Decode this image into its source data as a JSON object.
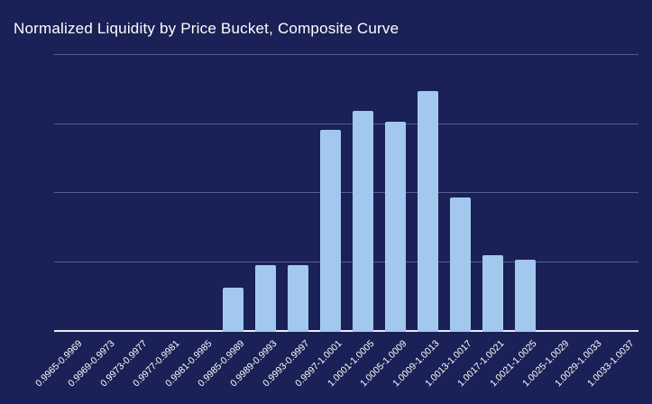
{
  "chart_data": {
    "type": "bar",
    "title": "Normalized Liquidity by Price Bucket, Composite Curve",
    "categories": [
      "0.9965-0.9969",
      "0.9969-0.9973",
      "0.9973-0.9977",
      "0.9977-0.9981",
      "0.9981-0.9985",
      "0.9985-0.9989",
      "0.9989-0.9993",
      "0.9993-0.9997",
      "0.9997-1.0001",
      "1.0001-1.0005",
      "1.0005-1.0009",
      "1.0009-1.0013",
      "1.0013-1.0017",
      "1.0017-1.0021",
      "1.0021-1.0025",
      "1.0025-1.0029",
      "1.0029-1.0033",
      "1.0033-1.0037"
    ],
    "values": [
      0,
      0,
      0,
      0,
      0,
      0.031,
      0.047,
      0.047,
      0.145,
      0.159,
      0.151,
      0.173,
      0.096,
      0.054,
      0.051,
      0,
      0,
      0
    ],
    "xlabel": "",
    "ylabel": "",
    "ylim": [
      0,
      0.2
    ],
    "ytick_interval": 0.05,
    "grid": true,
    "legend": false,
    "yaxis_labels_visible": false,
    "xlabel_rotation_deg": -45
  },
  "colors": {
    "background": "#1a2156",
    "bar": "#a3c8ed",
    "gridline": "#555f8c",
    "axis_line": "#e9edf5",
    "title_text": "#ffffff",
    "tick_label_text": "#ffffff"
  }
}
